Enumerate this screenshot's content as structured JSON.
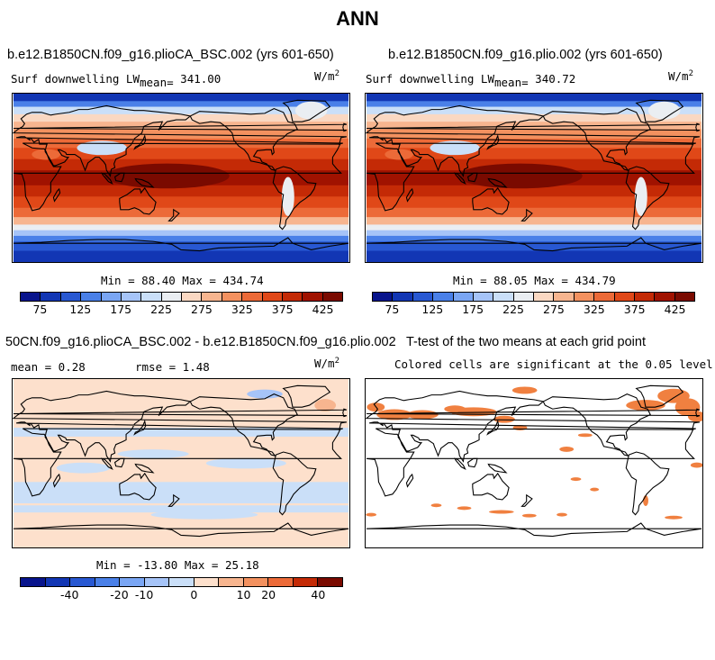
{
  "title": "ANN",
  "panels": [
    {
      "id": "case1",
      "title": "b.e12.B1850CN.f09_g16.plioCA_BSC.002 (yrs 601-650)",
      "var_label": "Surf downwelling LW",
      "mean_label": "mean=",
      "mean_value": "341.00",
      "units": "W/m",
      "units_exp": "2",
      "stats": "Min =  88.40 Max = 434.74"
    },
    {
      "id": "case2",
      "title": "b.e12.B1850CN.f09_g16.plio.002 (yrs 601-650)",
      "var_label": "Surf downwelling LW",
      "mean_label": "mean=",
      "mean_value": "340.72",
      "units": "W/m",
      "units_exp": "2",
      "stats": "Min =  88.05 Max = 434.79"
    },
    {
      "id": "diff",
      "title": "50CN.f09_g16.plioCA_BSC.002 - b.e12.B1850CN.f09_g16.plio.002",
      "mean_text": "mean =    0.28",
      "rmse_text": "rmse =   1.48",
      "units": "W/m",
      "units_exp": "2",
      "stats": "Min = -13.80 Max =  25.18"
    },
    {
      "id": "ttest",
      "title": "T-test of the two means at each grid point",
      "subtitle": "Colored cells are significant at the 0.05 level"
    }
  ],
  "chart_data": [
    {
      "type": "heatmap",
      "title": "b.e12.B1850CN.f09_g16.plioCA_BSC.002 (yrs 601-650)",
      "variable": "Surf downwelling LW",
      "units": "W/m2",
      "mean": 341.0,
      "min": 88.4,
      "max": 434.74,
      "colorbar_levels": [
        75,
        100,
        125,
        150,
        175,
        200,
        225,
        250,
        275,
        300,
        325,
        350,
        375,
        400,
        425
      ],
      "colorbar_labels": [
        "75",
        "125",
        "175",
        "225",
        "275",
        "325",
        "375",
        "425"
      ],
      "colors": [
        "#08148c",
        "#1236b4",
        "#2858d2",
        "#4a80e8",
        "#7aa6f4",
        "#a6c4f8",
        "#cadff8",
        "#eaeef2",
        "#fad8c2",
        "#f7b58f",
        "#f3915f",
        "#ec6a38",
        "#e04818",
        "#c42a06",
        "#a01200",
        "#7a0a00"
      ]
    },
    {
      "type": "heatmap",
      "title": "b.e12.B1850CN.f09_g16.plio.002 (yrs 601-650)",
      "variable": "Surf downwelling LW",
      "units": "W/m2",
      "mean": 340.72,
      "min": 88.05,
      "max": 434.79,
      "colorbar_levels": [
        75,
        100,
        125,
        150,
        175,
        200,
        225,
        250,
        275,
        300,
        325,
        350,
        375,
        400,
        425
      ],
      "colorbar_labels": [
        "75",
        "125",
        "175",
        "225",
        "275",
        "325",
        "375",
        "425"
      ],
      "colors": [
        "#08148c",
        "#1236b4",
        "#2858d2",
        "#4a80e8",
        "#7aa6f4",
        "#a6c4f8",
        "#cadff8",
        "#eaeef2",
        "#fad8c2",
        "#f7b58f",
        "#f3915f",
        "#ec6a38",
        "#e04818",
        "#c42a06",
        "#a01200",
        "#7a0a00"
      ]
    },
    {
      "type": "heatmap",
      "title": "50CN.f09_g16.plioCA_BSC.002 - b.e12.B1850CN.f09_g16.plio.002",
      "units": "W/m2",
      "mean": 0.28,
      "rmse": 1.48,
      "min": -13.8,
      "max": 25.18,
      "colorbar_levels": [
        -50,
        -40,
        -30,
        -20,
        -10,
        -5,
        0,
        5,
        10,
        20,
        30,
        40,
        50
      ],
      "colorbar_labels": [
        "-40",
        "-20",
        "-10",
        "0",
        "10",
        "20",
        "40"
      ],
      "colors": [
        "#08148c",
        "#1236b4",
        "#2858d2",
        "#4a80e8",
        "#7aa6f4",
        "#a6c4f8",
        "#cadff8",
        "#fde0cc",
        "#f7b58f",
        "#f3915f",
        "#ec6a38",
        "#c42a06",
        "#7a0a00"
      ]
    },
    {
      "type": "heatmap",
      "title": "T-test of the two means at each grid point",
      "subtitle": "Colored cells are significant at the 0.05 level",
      "significance_level": 0.05,
      "significant_color": "#f08040"
    }
  ]
}
